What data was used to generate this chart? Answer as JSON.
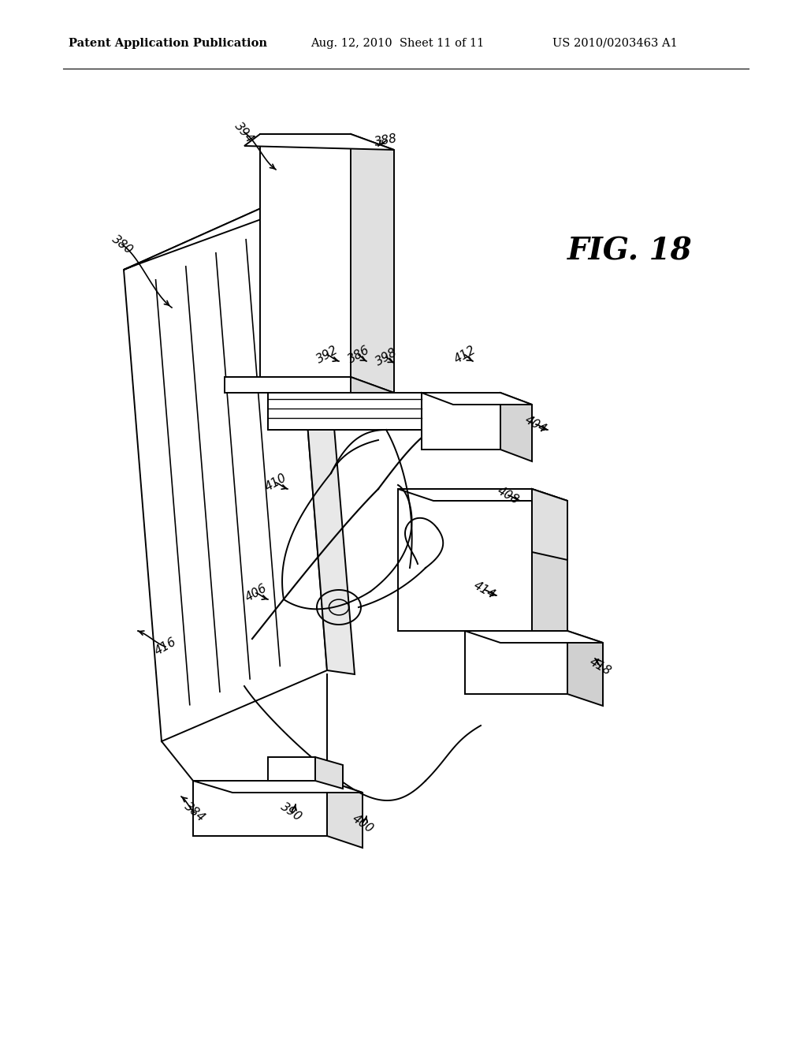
{
  "header_left": "Patent Application Publication",
  "header_center": "Aug. 12, 2010  Sheet 11 of 11",
  "header_right": "US 2010/0203463 A1",
  "fig_label": "FIG. 18",
  "background_color": "#ffffff",
  "line_color": "#000000",
  "lw": 1.4,
  "header_fontsize": 10.5,
  "fig_label_fontsize": 28,
  "label_fontsize": 11
}
